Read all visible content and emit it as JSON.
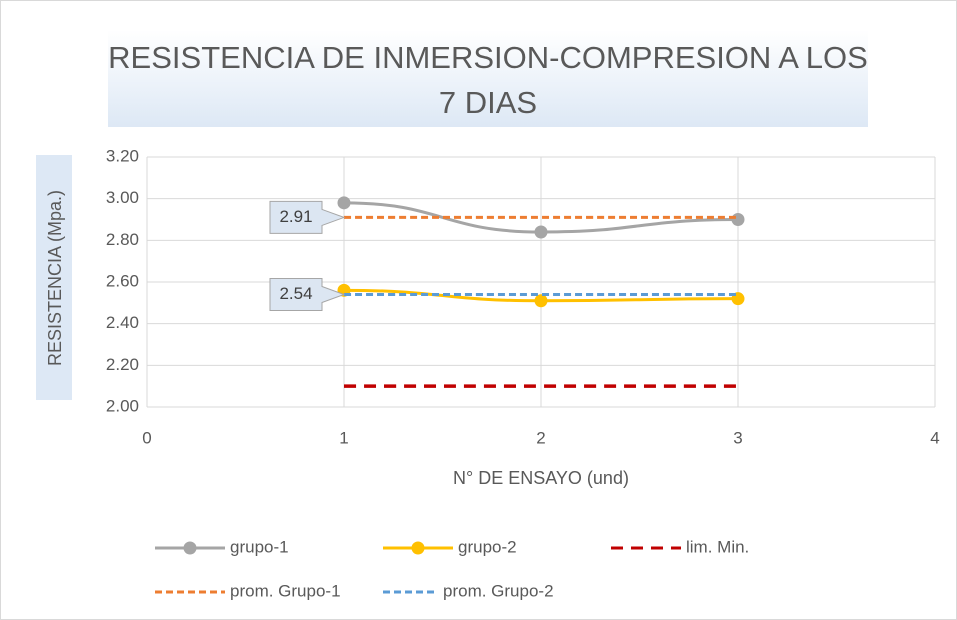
{
  "chart_data": {
    "type": "scatter",
    "title": "RESISTENCIA DE INMERSION-COMPRESION A LOS 7 DIAS",
    "xlabel": "N° DE ENSAYO (und)",
    "ylabel": "RESISTENCIA (Mpa.)",
    "x": [
      1,
      2,
      3
    ],
    "xlim": [
      0,
      4
    ],
    "xticks": [
      0,
      1,
      2,
      3,
      4
    ],
    "ylim": [
      2,
      3.2
    ],
    "yticks": [
      {
        "value": 2,
        "label": "2.00"
      },
      {
        "value": 2.2,
        "label": "2.20"
      },
      {
        "value": 2.4,
        "label": "2.40"
      },
      {
        "value": 2.6,
        "label": "2.60"
      },
      {
        "value": 2.8,
        "label": "2.80"
      },
      {
        "value": 3,
        "label": "3.00"
      },
      {
        "value": 3.2,
        "label": "3.20"
      }
    ],
    "grid": true,
    "legend": "bottom",
    "series": [
      {
        "name": "grupo-1",
        "color": "#a5a5a5",
        "values": [
          2.98,
          2.84,
          2.9
        ],
        "marker": true,
        "dash": false
      },
      {
        "name": "grupo-2",
        "color": "#ffc000",
        "values": [
          2.56,
          2.51,
          2.52
        ],
        "marker": true,
        "dash": false
      },
      {
        "name": "lim. Min.",
        "color": "#c00000",
        "values": [
          2.1,
          2.1,
          2.1
        ],
        "marker": false,
        "dash": true
      },
      {
        "name": "prom. Grupo-1",
        "color": "#ed7d31",
        "values": [
          2.91,
          2.91,
          2.91
        ],
        "marker": false,
        "dash": true,
        "value_labels": [
          "2.91",
          null,
          null
        ]
      },
      {
        "name": "prom. Grupo-2",
        "color": "#5b9bd5",
        "values": [
          2.54,
          2.54,
          2.54
        ],
        "marker": false,
        "dash": true,
        "value_labels": [
          "2.54",
          null,
          null
        ]
      }
    ]
  }
}
